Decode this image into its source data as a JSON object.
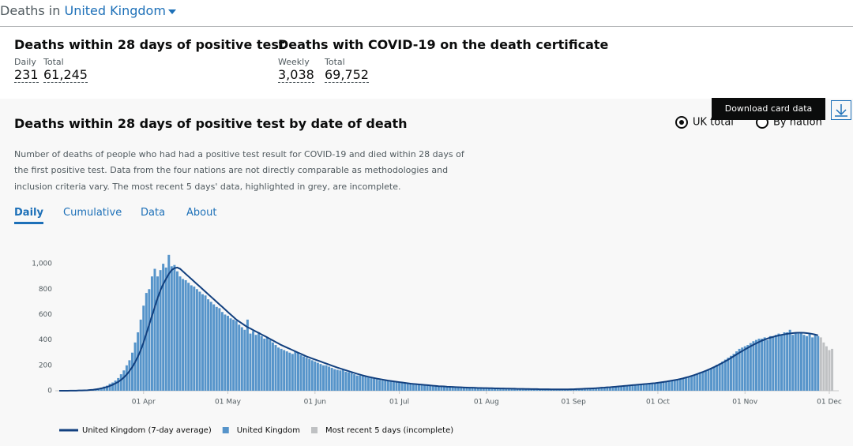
{
  "header": {
    "prefix": "Deaths in",
    "area": "United Kingdom"
  },
  "summary": [
    {
      "title": "Deaths within 28 days of positive test",
      "metrics": [
        {
          "label": "Daily",
          "value": "231"
        },
        {
          "label": "Total",
          "value": "61,245"
        }
      ]
    },
    {
      "title": "Deaths with COVID-19 on the death certificate",
      "metrics": [
        {
          "label": "Weekly",
          "value": "3,038"
        },
        {
          "label": "Total",
          "value": "69,752"
        }
      ]
    }
  ],
  "card": {
    "title": "Deaths within 28 days of positive test by date of death",
    "tooltip": "Download card data",
    "options": [
      "UK total",
      "By nation"
    ],
    "description": [
      "Number of deaths of people who had had a positive test result for COVID-19 and died within 28 days of",
      "the first positive test. Data from the four nations are not directly comparable as methodologies and",
      "inclusion criteria vary. The most recent 5 days' data, highlighted in grey, are incomplete."
    ],
    "tabs": [
      "Daily",
      "Cumulative",
      "Data",
      "About"
    ]
  },
  "chart_data": {
    "type": "bar",
    "categories": [
      null,
      null,
      null,
      null,
      null,
      null,
      null,
      null,
      null,
      null,
      null,
      null,
      null,
      null,
      null,
      null,
      null,
      null,
      null,
      null,
      null,
      null,
      null,
      null,
      null,
      null,
      null,
      null,
      null,
      null,
      "01 Apr",
      null,
      null,
      null,
      null,
      null,
      null,
      null,
      null,
      null,
      null,
      null,
      null,
      null,
      null,
      null,
      null,
      null,
      null,
      null,
      null,
      null,
      null,
      null,
      null,
      null,
      null,
      null,
      null,
      null,
      "01 May",
      null,
      null,
      null,
      null,
      null,
      null,
      null,
      null,
      null,
      null,
      null,
      null,
      null,
      null,
      null,
      null,
      null,
      null,
      null,
      null,
      null,
      null,
      null,
      null,
      null,
      null,
      null,
      null,
      null,
      null,
      "01 Jun",
      null,
      null,
      null,
      null,
      null,
      null,
      null,
      null,
      null,
      null,
      null,
      null,
      null,
      null,
      null,
      null,
      null,
      null,
      null,
      null,
      null,
      null,
      null,
      null,
      null,
      null,
      null,
      null,
      null,
      "01 Jul",
      null,
      null,
      null,
      null,
      null,
      null,
      null,
      null,
      null,
      null,
      null,
      null,
      null,
      null,
      null,
      null,
      null,
      null,
      null,
      null,
      null,
      null,
      null,
      null,
      null,
      null,
      null,
      null,
      null,
      null,
      "01 Aug",
      null,
      null,
      null,
      null,
      null,
      null,
      null,
      null,
      null,
      null,
      null,
      null,
      null,
      null,
      null,
      null,
      null,
      null,
      null,
      null,
      null,
      null,
      null,
      null,
      null,
      null,
      null,
      null,
      null,
      null,
      "01 Sep",
      null,
      null,
      null,
      null,
      null,
      null,
      null,
      null,
      null,
      null,
      null,
      null,
      null,
      null,
      null,
      null,
      null,
      null,
      null,
      null,
      null,
      null,
      null,
      null,
      null,
      null,
      null,
      null,
      null,
      "01 Oct",
      null,
      null,
      null,
      null,
      null,
      null,
      null,
      null,
      null,
      null,
      null,
      null,
      null,
      null,
      null,
      null,
      null,
      null,
      null,
      null,
      null,
      null,
      null,
      null,
      null,
      null,
      null,
      null,
      null,
      null,
      "01 Nov",
      null,
      null,
      null,
      null,
      null,
      null,
      null,
      null,
      null,
      null,
      null,
      null,
      null,
      null,
      null,
      null,
      null,
      null,
      null,
      null,
      null,
      null,
      null,
      null,
      null,
      null,
      null,
      null,
      null,
      "01 Dec",
      null
    ],
    "ylim": [
      0,
      1100
    ],
    "yticks": [
      0,
      200,
      400,
      600,
      800,
      {
        "value": 1000,
        "label": "1,000"
      }
    ],
    "grid": false,
    "series": [
      {
        "name": "United Kingdom (7-day average)",
        "type": "line",
        "color": "#12407f",
        "values": [
          0,
          0,
          0,
          0,
          1,
          1,
          1,
          2,
          2,
          3,
          4,
          6,
          8,
          11,
          14,
          19,
          24,
          30,
          38,
          47,
          58,
          70,
          86,
          105,
          128,
          155,
          187,
          225,
          270,
          320,
          380,
          450,
          520,
          590,
          660,
          730,
          790,
          840,
          880,
          920,
          950,
          965,
          970,
          960,
          940,
          920,
          900,
          880,
          860,
          840,
          820,
          800,
          780,
          760,
          740,
          720,
          700,
          680,
          660,
          640,
          620,
          600,
          580,
          560,
          545,
          530,
          515,
          500,
          490,
          478,
          466,
          455,
          443,
          432,
          420,
          408,
          396,
          384,
          372,
          360,
          350,
          340,
          330,
          320,
          310,
          300,
          290,
          280,
          270,
          262,
          254,
          246,
          238,
          230,
          222,
          214,
          206,
          198,
          190,
          182,
          175,
          168,
          161,
          154,
          147,
          140,
          133,
          127,
          121,
          115,
          110,
          105,
          100,
          96,
          92,
          88,
          84,
          80,
          77,
          74,
          71,
          68,
          65,
          62,
          59,
          56,
          54,
          52,
          50,
          48,
          46,
          44,
          42,
          40,
          38,
          36,
          35,
          34,
          32,
          31,
          30,
          29,
          28,
          27,
          26,
          25,
          24,
          24,
          23,
          22,
          22,
          21,
          21,
          20,
          20,
          19,
          19,
          18,
          18,
          17,
          17,
          16,
          16,
          15,
          15,
          15,
          14,
          14,
          13,
          13,
          13,
          12,
          12,
          12,
          12,
          11,
          11,
          11,
          11,
          11,
          11,
          11,
          12,
          12,
          13,
          14,
          15,
          16,
          17,
          18,
          19,
          20,
          22,
          24,
          25,
          27,
          28,
          30,
          32,
          34,
          36,
          38,
          40,
          42,
          44,
          46,
          48,
          50,
          52,
          54,
          56,
          58,
          60,
          63,
          66,
          69,
          72,
          76,
          80,
          84,
          88,
          93,
          98,
          104,
          110,
          117,
          124,
          132,
          140,
          148,
          157,
          166,
          176,
          186,
          197,
          208,
          220,
          232,
          245,
          258,
          272,
          286,
          300,
          312,
          325,
          338,
          350,
          362,
          373,
          384,
          394,
          403,
          411,
          418,
          424,
          430,
          435,
          440,
          444,
          448,
          451,
          454,
          456,
          457,
          457,
          456,
          454,
          451,
          447,
          442,
          436,
          null,
          null,
          null,
          null,
          null
        ]
      },
      {
        "name": "United Kingdom",
        "type": "bar",
        "color": "#5694ca",
        "values": [
          0,
          0,
          0,
          1,
          1,
          1,
          2,
          2,
          3,
          4,
          6,
          8,
          12,
          16,
          20,
          25,
          33,
          40,
          55,
          65,
          80,
          100,
          130,
          160,
          200,
          240,
          300,
          380,
          460,
          560,
          670,
          770,
          800,
          900,
          960,
          900,
          950,
          1000,
          970,
          1070,
          980,
          990,
          940,
          900,
          880,
          870,
          850,
          830,
          820,
          800,
          780,
          760,
          750,
          720,
          700,
          680,
          660,
          650,
          620,
          600,
          590,
          570,
          560,
          550,
          520,
          500,
          480,
          560,
          450,
          470,
          440,
          460,
          430,
          410,
          420,
          400,
          380,
          360,
          340,
          330,
          320,
          310,
          300,
          290,
          310,
          300,
          280,
          270,
          260,
          250,
          240,
          230,
          220,
          210,
          200,
          200,
          190,
          180,
          170,
          165,
          160,
          170,
          150,
          145,
          140,
          130,
          120,
          120,
          115,
          110,
          105,
          100,
          95,
          90,
          85,
          80,
          78,
          75,
          72,
          70,
          68,
          65,
          62,
          60,
          58,
          56,
          55,
          52,
          50,
          50,
          48,
          45,
          43,
          40,
          38,
          36,
          35,
          34,
          32,
          30,
          30,
          29,
          28,
          27,
          26,
          25,
          24,
          24,
          23,
          22,
          22,
          21,
          21,
          20,
          20,
          19,
          19,
          18,
          18,
          17,
          17,
          16,
          16,
          15,
          15,
          15,
          14,
          14,
          13,
          13,
          13,
          12,
          12,
          12,
          12,
          11,
          11,
          11,
          11,
          11,
          11,
          11,
          12,
          12,
          13,
          14,
          15,
          16,
          17,
          18,
          19,
          20,
          22,
          24,
          25,
          27,
          28,
          30,
          32,
          34,
          36,
          38,
          40,
          42,
          44,
          46,
          48,
          50,
          52,
          54,
          56,
          58,
          60,
          62,
          65,
          68,
          72,
          75,
          80,
          85,
          90,
          95,
          100,
          105,
          110,
          120,
          125,
          135,
          145,
          150,
          160,
          170,
          180,
          190,
          205,
          215,
          230,
          245,
          260,
          275,
          290,
          310,
          330,
          340,
          350,
          360,
          375,
          390,
          400,
          410,
          410,
          420,
          400,
          430,
          420,
          440,
          450,
          440,
          460,
          460,
          480,
          440,
          460,
          450,
          460,
          440,
          430,
          450,
          420,
          440,
          430,
          null,
          null,
          null,
          null,
          null
        ]
      },
      {
        "name": "Most recent 5 days (incomplete)",
        "type": "bar",
        "color": "#bfc1c3",
        "values": [
          null,
          null,
          null,
          null,
          null,
          null,
          null,
          null,
          null,
          null,
          null,
          null,
          null,
          null,
          null,
          null,
          null,
          null,
          null,
          null,
          null,
          null,
          null,
          null,
          null,
          null,
          null,
          null,
          null,
          null,
          null,
          null,
          null,
          null,
          null,
          null,
          null,
          null,
          null,
          null,
          null,
          null,
          null,
          null,
          null,
          null,
          null,
          null,
          null,
          null,
          null,
          null,
          null,
          null,
          null,
          null,
          null,
          null,
          null,
          null,
          null,
          null,
          null,
          null,
          null,
          null,
          null,
          null,
          null,
          null,
          null,
          null,
          null,
          null,
          null,
          null,
          null,
          null,
          null,
          null,
          null,
          null,
          null,
          null,
          null,
          null,
          null,
          null,
          null,
          null,
          null,
          null,
          null,
          null,
          null,
          null,
          null,
          null,
          null,
          null,
          null,
          null,
          null,
          null,
          null,
          null,
          null,
          null,
          null,
          null,
          null,
          null,
          null,
          null,
          null,
          null,
          null,
          null,
          null,
          null,
          null,
          null,
          null,
          null,
          null,
          null,
          null,
          null,
          null,
          null,
          null,
          null,
          null,
          null,
          null,
          null,
          null,
          null,
          null,
          null,
          null,
          null,
          null,
          null,
          null,
          null,
          null,
          null,
          null,
          null,
          null,
          null,
          null,
          null,
          null,
          null,
          null,
          null,
          null,
          null,
          null,
          null,
          null,
          null,
          null,
          null,
          null,
          null,
          null,
          null,
          null,
          null,
          null,
          null,
          null,
          null,
          null,
          null,
          null,
          null,
          null,
          null,
          null,
          null,
          null,
          null,
          null,
          null,
          null,
          null,
          null,
          null,
          null,
          null,
          null,
          null,
          null,
          null,
          null,
          null,
          null,
          null,
          null,
          null,
          null,
          null,
          null,
          null,
          null,
          null,
          null,
          null,
          null,
          null,
          null,
          null,
          null,
          null,
          null,
          null,
          null,
          null,
          null,
          null,
          null,
          null,
          null,
          null,
          null,
          null,
          null,
          null,
          null,
          null,
          null,
          null,
          null,
          null,
          null,
          null,
          null,
          null,
          null,
          null,
          null,
          null,
          null,
          null,
          null,
          null,
          null,
          null,
          null,
          null,
          null,
          null,
          null,
          null,
          null,
          null,
          null,
          null,
          null,
          null,
          null,
          null,
          null,
          null,
          null,
          null,
          null,
          420,
          380,
          350,
          320,
          330
        ]
      }
    ]
  }
}
